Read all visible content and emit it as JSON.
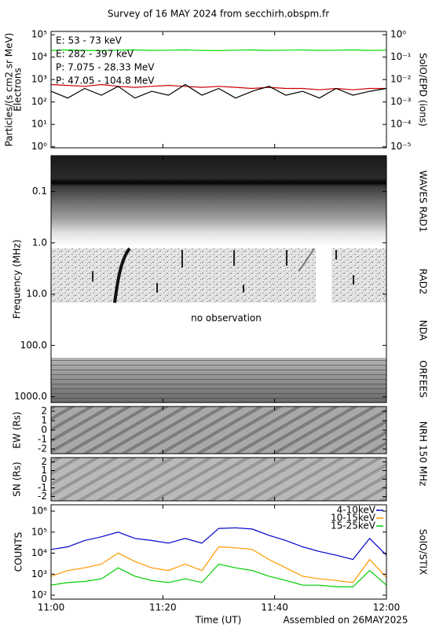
{
  "chart_data": [
    {
      "type": "line",
      "title": "Survey of 16 MAY 2024 from secchirh.obspm.fr",
      "ylabel": [
        "Particles/(s cm2 sr MeV)",
        "Electrons"
      ],
      "y2label": "SolO/EPD (ions)",
      "log_scale": true,
      "legend": "upper-left",
      "x": [
        "11:00",
        "11:03",
        "11:06",
        "11:09",
        "11:12",
        "11:15",
        "11:18",
        "11:21",
        "11:24",
        "11:27",
        "11:30",
        "11:33",
        "11:36",
        "11:39",
        "11:42",
        "11:45",
        "11:48",
        "11:51",
        "11:54",
        "11:57",
        "12:00"
      ],
      "ylim": [
        0.9,
        140000
      ],
      "yticks": [
        {
          "value": 1,
          "label": "10⁰"
        },
        {
          "value": 10,
          "label": "10¹"
        },
        {
          "value": 100,
          "label": "10²"
        },
        {
          "value": 1000,
          "label": "10³"
        },
        {
          "value": 10000,
          "label": "10⁴"
        },
        {
          "value": 100000,
          "label": "10⁵"
        }
      ],
      "y2lim": [
        9e-06,
        1.4
      ],
      "y2ticks": [
        {
          "value": 1e-05,
          "label": "10⁻⁵"
        },
        {
          "value": 0.0001,
          "label": "10⁻⁴"
        },
        {
          "value": 0.001,
          "label": "10⁻³"
        },
        {
          "value": 0.01,
          "label": "10⁻²"
        },
        {
          "value": 0.1,
          "label": "10⁻¹"
        },
        {
          "value": 1,
          "label": "10⁰"
        }
      ],
      "series": [
        {
          "name": "E: 53 - 73 keV",
          "color": "#00dd00",
          "values": [
            20000,
            21000,
            20000,
            19500,
            20500,
            21000,
            20000,
            20500,
            21000,
            20000,
            19500,
            20500,
            21000,
            20000,
            20500,
            21000,
            20000,
            20500,
            21000,
            20000,
            20500
          ]
        },
        {
          "name": "E: 282 - 397 keV",
          "color": "#cc0000",
          "values": [
            600,
            550,
            500,
            600,
            500,
            450,
            500,
            550,
            500,
            450,
            500,
            450,
            400,
            450,
            400,
            400,
            350,
            400,
            350,
            400,
            400
          ]
        },
        {
          "name": "P: 7.075 - 28.33 MeV",
          "color": "#000000",
          "axis": "y2",
          "values": [
            0.003,
            0.0015,
            0.004,
            0.002,
            0.005,
            0.0015,
            0.003,
            0.002,
            0.006,
            0.002,
            0.004,
            0.0015,
            0.003,
            0.005,
            0.002,
            0.003,
            0.0015,
            0.004,
            0.002,
            0.003,
            0.004
          ]
        },
        {
          "name": "P: 47.05 - 104.8 MeV",
          "color": "#0000cc",
          "axis": "y2",
          "values": [
            null,
            null,
            null,
            null,
            null,
            null,
            null,
            null,
            null,
            null,
            null,
            null,
            null,
            null,
            null,
            null,
            null,
            null,
            null,
            null,
            null
          ]
        }
      ]
    },
    {
      "type": "spectrogram",
      "ylabel": "Frequency (MHz)",
      "log_scale": true,
      "ylim": [
        1300,
        0.02
      ],
      "yticks": [
        0.1,
        {
          "value": 1,
          "label": "1.0"
        },
        {
          "value": 10,
          "label": "10.0"
        },
        {
          "value": 100,
          "label": "100.0"
        },
        {
          "value": 1000,
          "label": "1000.0"
        }
      ],
      "instruments": [
        "WAVES RAD1",
        "RAD2",
        "NDA",
        "ORFEES"
      ],
      "annotation": "no observation"
    },
    {
      "type": "image",
      "ylabel": "EW (Rs)",
      "y2label": "NRH 150 MHz",
      "ylim": [
        -2.5,
        2.5
      ],
      "yticks": [
        2,
        1,
        0,
        -1,
        -2
      ]
    },
    {
      "type": "image",
      "ylabel": "SN (Rs)",
      "ylim": [
        -2.5,
        2.5
      ],
      "yticks": [
        2,
        1,
        0,
        -1,
        -2
      ]
    },
    {
      "type": "line",
      "ylabel": [
        "COUNTS"
      ],
      "y2label": "SolO/STIX",
      "log_scale": true,
      "legend": "upper-right",
      "xlabel": "Time (UT)",
      "annotation": "Assembled on 26MAY2025",
      "xlim": [
        "11:00",
        "12:00"
      ],
      "xticks": [
        "11:00",
        "11:20",
        "11:40",
        "12:00"
      ],
      "x": [
        "11:00",
        "11:03",
        "11:06",
        "11:09",
        "11:12",
        "11:15",
        "11:18",
        "11:21",
        "11:24",
        "11:27",
        "11:30",
        "11:33",
        "11:36",
        "11:39",
        "11:42",
        "11:45",
        "11:48",
        "11:51",
        "11:54",
        "11:57",
        "12:00"
      ],
      "ylim": [
        65,
        2000000
      ],
      "yticks": [
        {
          "value": 100,
          "label": "10²"
        },
        {
          "value": 1000,
          "label": "10³"
        },
        {
          "value": 10000,
          "label": "10⁴"
        },
        {
          "value": 100000,
          "label": "10⁵"
        },
        {
          "value": 1000000,
          "label": "10⁶"
        }
      ],
      "series": [
        {
          "name": "4-10keV",
          "color": "#0000cc",
          "values": [
            15000,
            20000,
            40000,
            60000,
            100000,
            50000,
            40000,
            30000,
            50000,
            30000,
            150000,
            160000,
            140000,
            70000,
            40000,
            20000,
            12000,
            8000,
            5000,
            50000,
            8000
          ]
        },
        {
          "name": "10-15keV",
          "color": "#ff9900",
          "values": [
            800,
            1500,
            2000,
            3000,
            10000,
            4000,
            2000,
            1500,
            3000,
            1500,
            20000,
            18000,
            15000,
            5000,
            2000,
            800,
            600,
            500,
            400,
            5000,
            700
          ]
        },
        {
          "name": "15-25keV",
          "color": "#00cc00",
          "values": [
            300,
            400,
            450,
            600,
            2000,
            800,
            500,
            400,
            600,
            400,
            3000,
            2000,
            1500,
            800,
            500,
            300,
            300,
            250,
            250,
            1500,
            300
          ]
        }
      ]
    }
  ]
}
